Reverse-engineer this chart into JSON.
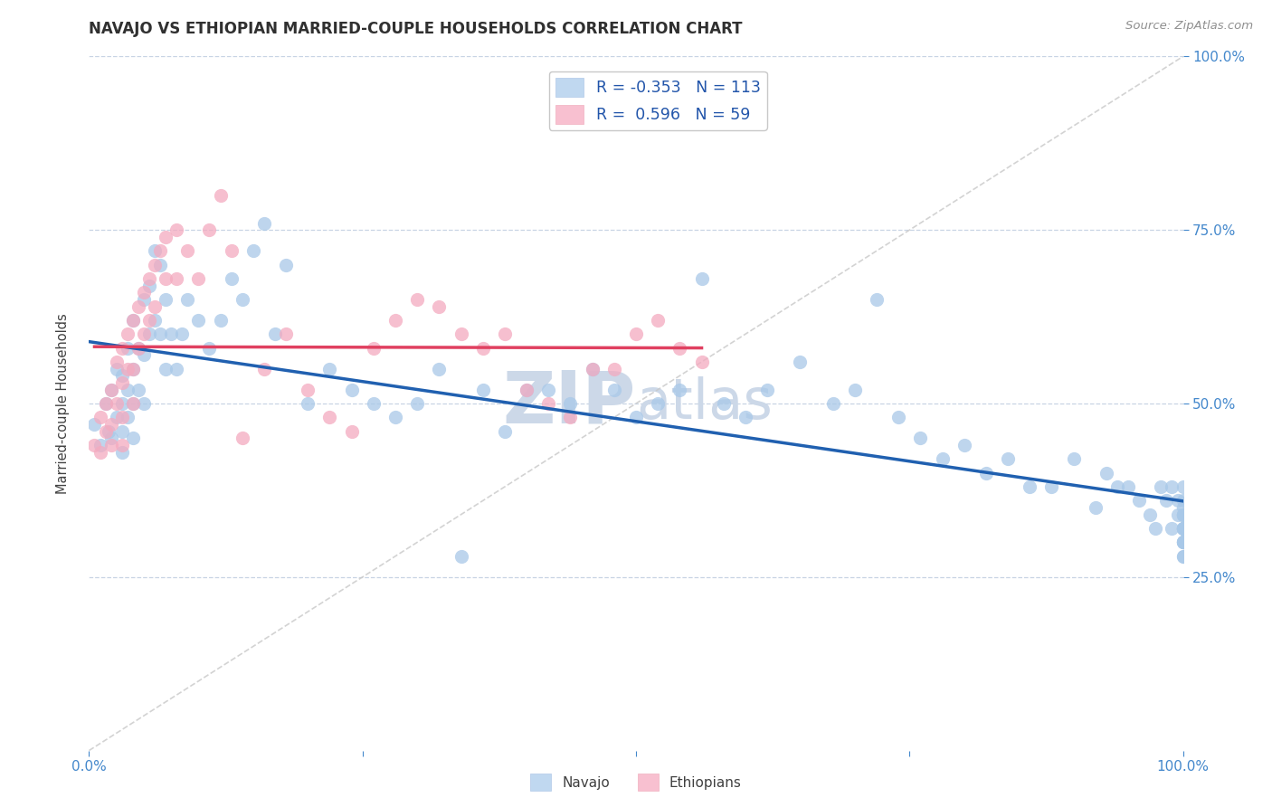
{
  "title": "NAVAJO VS ETHIOPIAN MARRIED-COUPLE HOUSEHOLDS CORRELATION CHART",
  "source": "Source: ZipAtlas.com",
  "ylabel": "Married-couple Households",
  "xlim": [
    0,
    1
  ],
  "ylim": [
    0,
    1
  ],
  "xtick_labels": [
    "0.0%",
    "",
    "",
    "",
    "100.0%"
  ],
  "xtick_positions": [
    0.0,
    0.25,
    0.5,
    0.75,
    1.0
  ],
  "ytick_labels": [
    "25.0%",
    "50.0%",
    "75.0%",
    "100.0%"
  ],
  "ytick_positions": [
    0.25,
    0.5,
    0.75,
    1.0
  ],
  "navajo_R": "-0.353",
  "navajo_N": "113",
  "ethiopian_R": "0.596",
  "ethiopian_N": "59",
  "navajo_color": "#a8c8e8",
  "ethiopian_color": "#f4aabf",
  "navajo_line_color": "#2060b0",
  "ethiopian_line_color": "#e04060",
  "legend_navajo_facecolor": "#c0d8f0",
  "legend_ethiopian_facecolor": "#f8c0d0",
  "background_color": "#ffffff",
  "grid_color": "#c8d4e4",
  "title_color": "#303030",
  "axis_label_color": "#404040",
  "tick_color": "#4488cc",
  "source_color": "#909090",
  "watermark_color": "#ccd8e8",
  "navajo_scatter_x": [
    0.005,
    0.01,
    0.015,
    0.018,
    0.02,
    0.02,
    0.025,
    0.025,
    0.03,
    0.03,
    0.03,
    0.03,
    0.035,
    0.035,
    0.035,
    0.04,
    0.04,
    0.04,
    0.04,
    0.045,
    0.045,
    0.05,
    0.05,
    0.05,
    0.055,
    0.055,
    0.06,
    0.06,
    0.065,
    0.065,
    0.07,
    0.07,
    0.075,
    0.08,
    0.085,
    0.09,
    0.1,
    0.11,
    0.12,
    0.13,
    0.14,
    0.15,
    0.16,
    0.17,
    0.18,
    0.2,
    0.22,
    0.24,
    0.26,
    0.28,
    0.3,
    0.32,
    0.34,
    0.36,
    0.38,
    0.4,
    0.42,
    0.44,
    0.46,
    0.48,
    0.5,
    0.52,
    0.54,
    0.56,
    0.58,
    0.6,
    0.62,
    0.65,
    0.68,
    0.7,
    0.72,
    0.74,
    0.76,
    0.78,
    0.8,
    0.82,
    0.84,
    0.86,
    0.88,
    0.9,
    0.92,
    0.93,
    0.94,
    0.95,
    0.96,
    0.97,
    0.975,
    0.98,
    0.985,
    0.99,
    0.99,
    0.995,
    0.995,
    1.0,
    1.0,
    1.0,
    1.0,
    1.0,
    1.0,
    1.0,
    1.0,
    1.0,
    1.0,
    1.0,
    1.0,
    1.0,
    1.0,
    1.0,
    1.0,
    1.0,
    1.0,
    1.0,
    1.0
  ],
  "navajo_scatter_y": [
    0.47,
    0.44,
    0.5,
    0.46,
    0.52,
    0.45,
    0.55,
    0.48,
    0.54,
    0.5,
    0.46,
    0.43,
    0.58,
    0.52,
    0.48,
    0.62,
    0.55,
    0.5,
    0.45,
    0.58,
    0.52,
    0.65,
    0.57,
    0.5,
    0.67,
    0.6,
    0.72,
    0.62,
    0.7,
    0.6,
    0.65,
    0.55,
    0.6,
    0.55,
    0.6,
    0.65,
    0.62,
    0.58,
    0.62,
    0.68,
    0.65,
    0.72,
    0.76,
    0.6,
    0.7,
    0.5,
    0.55,
    0.52,
    0.5,
    0.48,
    0.5,
    0.55,
    0.28,
    0.52,
    0.46,
    0.52,
    0.52,
    0.5,
    0.55,
    0.52,
    0.48,
    0.5,
    0.52,
    0.68,
    0.5,
    0.48,
    0.52,
    0.56,
    0.5,
    0.52,
    0.65,
    0.48,
    0.45,
    0.42,
    0.44,
    0.4,
    0.42,
    0.38,
    0.38,
    0.42,
    0.35,
    0.4,
    0.38,
    0.38,
    0.36,
    0.34,
    0.32,
    0.38,
    0.36,
    0.38,
    0.32,
    0.36,
    0.34,
    0.38,
    0.34,
    0.35,
    0.32,
    0.32,
    0.3,
    0.34,
    0.36,
    0.32,
    0.3,
    0.28,
    0.3,
    0.32,
    0.34,
    0.3,
    0.28,
    0.32,
    0.34,
    0.32,
    0.3
  ],
  "ethiopian_scatter_x": [
    0.005,
    0.01,
    0.01,
    0.015,
    0.015,
    0.02,
    0.02,
    0.02,
    0.025,
    0.025,
    0.03,
    0.03,
    0.03,
    0.03,
    0.035,
    0.035,
    0.04,
    0.04,
    0.04,
    0.045,
    0.045,
    0.05,
    0.05,
    0.055,
    0.055,
    0.06,
    0.06,
    0.065,
    0.07,
    0.07,
    0.08,
    0.08,
    0.09,
    0.1,
    0.11,
    0.12,
    0.13,
    0.14,
    0.16,
    0.18,
    0.2,
    0.22,
    0.24,
    0.26,
    0.28,
    0.3,
    0.32,
    0.34,
    0.36,
    0.38,
    0.4,
    0.42,
    0.44,
    0.46,
    0.48,
    0.5,
    0.52,
    0.54,
    0.56
  ],
  "ethiopian_scatter_y": [
    0.44,
    0.48,
    0.43,
    0.5,
    0.46,
    0.52,
    0.47,
    0.44,
    0.56,
    0.5,
    0.58,
    0.53,
    0.48,
    0.44,
    0.6,
    0.55,
    0.62,
    0.55,
    0.5,
    0.64,
    0.58,
    0.66,
    0.6,
    0.68,
    0.62,
    0.7,
    0.64,
    0.72,
    0.74,
    0.68,
    0.75,
    0.68,
    0.72,
    0.68,
    0.75,
    0.8,
    0.72,
    0.45,
    0.55,
    0.6,
    0.52,
    0.48,
    0.46,
    0.58,
    0.62,
    0.65,
    0.64,
    0.6,
    0.58,
    0.6,
    0.52,
    0.5,
    0.48,
    0.55,
    0.55,
    0.6,
    0.62,
    0.58,
    0.56
  ]
}
